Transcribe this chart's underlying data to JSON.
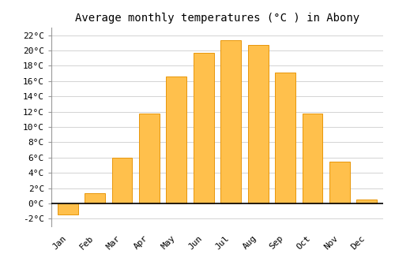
{
  "title": "Average monthly temperatures (°C ) in Abony",
  "months": [
    "Jan",
    "Feb",
    "Mar",
    "Apr",
    "May",
    "Jun",
    "Jul",
    "Aug",
    "Sep",
    "Oct",
    "Nov",
    "Dec"
  ],
  "values": [
    -1.5,
    1.3,
    6.0,
    11.8,
    16.6,
    19.7,
    21.3,
    20.7,
    17.1,
    11.8,
    5.5,
    0.5
  ],
  "bar_color": "#FFC04C",
  "bar_edge_color": "#E8960A",
  "ylim": [
    -3,
    23
  ],
  "yticks": [
    -2,
    0,
    2,
    4,
    6,
    8,
    10,
    12,
    14,
    16,
    18,
    20,
    22
  ],
  "ytick_labels": [
    "-2°C",
    "0°C",
    "2°C",
    "4°C",
    "6°C",
    "8°C",
    "10°C",
    "12°C",
    "14°C",
    "16°C",
    "18°C",
    "20°C",
    "22°C"
  ],
  "bg_color": "#FFFFFF",
  "grid_color": "#CCCCCC",
  "title_fontsize": 10,
  "tick_fontsize": 8
}
